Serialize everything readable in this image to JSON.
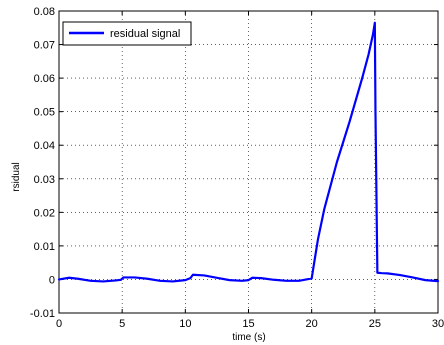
{
  "chart_data": {
    "type": "line",
    "title": "",
    "xlabel": "time (s)",
    "ylabel": "rsidual",
    "xlim": [
      0,
      30
    ],
    "ylim": [
      -0.01,
      0.08
    ],
    "xticks": [
      0,
      5,
      10,
      15,
      20,
      25,
      30
    ],
    "yticks": [
      -0.01,
      0,
      0.01,
      0.02,
      0.03,
      0.04,
      0.05,
      0.06,
      0.07,
      0.08
    ],
    "ytick_labels": [
      "-0.01",
      "0",
      "0.01",
      "0.02",
      "0.03",
      "0.04",
      "0.05",
      "0.06",
      "0.07",
      "0.08"
    ],
    "grid": true,
    "legend": {
      "position": "top-left",
      "entries": [
        "residual signal"
      ]
    },
    "series": [
      {
        "name": "residual signal",
        "color": "#0000ff",
        "x": [
          0,
          0.8,
          1.5,
          2.5,
          3.5,
          4.5,
          4.9,
          5.1,
          6.0,
          7.0,
          8.0,
          9.0,
          10.0,
          10.4,
          10.6,
          11.5,
          12.5,
          13.5,
          14.5,
          15.0,
          15.3,
          16.0,
          17.0,
          18.0,
          19.0,
          20.0,
          20.2,
          20.5,
          21.0,
          22.0,
          23.0,
          24.0,
          24.5,
          24.85,
          25.0,
          25.05,
          25.2,
          25.5,
          26.0,
          27.0,
          28.0,
          29.0,
          30.0
        ],
        "y": [
          0,
          0.0005,
          0.0002,
          -0.0004,
          -0.0006,
          -0.0003,
          -0.0001,
          0.0006,
          0.0006,
          0.0002,
          -0.0004,
          -0.0006,
          -0.0002,
          0.0004,
          0.0014,
          0.0012,
          0.0005,
          -0.0002,
          -0.0004,
          -0.0002,
          0.0005,
          0.0004,
          -0.0001,
          -0.0004,
          -0.0004,
          0.0003,
          0.005,
          0.012,
          0.021,
          0.035,
          0.047,
          0.06,
          0.067,
          0.073,
          0.0765,
          0.05,
          0.002,
          0.0019,
          0.0018,
          0.0013,
          0.0006,
          -0.0002,
          -0.0005
        ]
      }
    ]
  }
}
